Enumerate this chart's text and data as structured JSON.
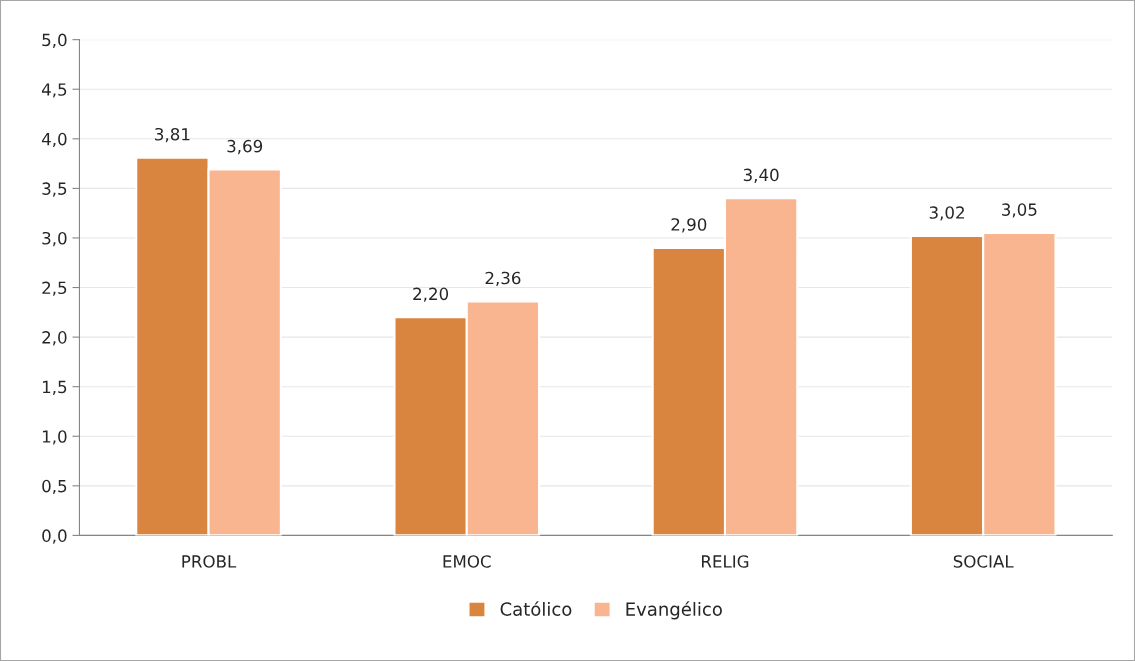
{
  "chart_data": {
    "type": "bar",
    "categories": [
      "PROBL",
      "EMOC",
      "RELIG",
      "SOCIAL"
    ],
    "series": [
      {
        "name": "Católico",
        "color": "#d9843f",
        "values": [
          3.81,
          2.2,
          2.9,
          3.02
        ],
        "value_labels": [
          "3,81",
          "2,20",
          "2,90",
          "3,02"
        ]
      },
      {
        "name": "Evangélico",
        "color": "#f8b58f",
        "values": [
          3.69,
          2.36,
          3.4,
          3.05
        ],
        "value_labels": [
          "3,69",
          "2,36",
          "3,40",
          "3,05"
        ]
      }
    ],
    "ylim": [
      0,
      5
    ],
    "yticks": [
      {
        "value": 0,
        "label": "0,0"
      },
      {
        "value": 0.5,
        "label": "0,5"
      },
      {
        "value": 1,
        "label": "1,0"
      },
      {
        "value": 1.5,
        "label": "1,5"
      },
      {
        "value": 2,
        "label": "2,0"
      },
      {
        "value": 2.5,
        "label": "2,5"
      },
      {
        "value": 3,
        "label": "3,0"
      },
      {
        "value": 3.5,
        "label": "3,5"
      },
      {
        "value": 4,
        "label": "4,0"
      },
      {
        "value": 4.5,
        "label": "4,5"
      },
      {
        "value": 5,
        "label": "5,0"
      }
    ],
    "grid": "y",
    "legend": "bottom"
  }
}
